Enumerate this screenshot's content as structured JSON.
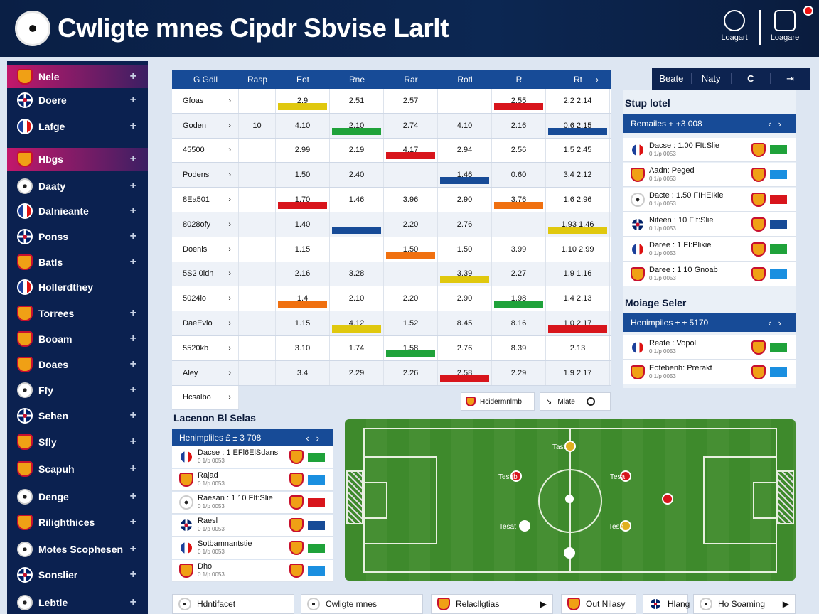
{
  "header": {
    "title": "Cwligte mnes Cipdr Sbvise Larlt",
    "brand1": "Loagart",
    "brand2": "Loagare"
  },
  "sidebar": [
    {
      "label": "Nele",
      "icon": "shield-icon"
    },
    {
      "label": "Doere",
      "icon": "uk-flag-icon"
    },
    {
      "label": "Lafge",
      "icon": "globe-icon"
    },
    {
      "label": "Hbgs",
      "icon": "shield-icon"
    },
    {
      "label": "Daaty",
      "icon": "boot-icon"
    },
    {
      "label": "Dalnieante",
      "icon": "france-flag-icon"
    },
    {
      "label": "Ponss",
      "icon": "uk-flag-icon"
    },
    {
      "label": "Batls",
      "icon": "shield-icon"
    },
    {
      "label": "Hollerdthey",
      "icon": "france-flag-icon"
    },
    {
      "label": "Torrees",
      "icon": "player-icon"
    },
    {
      "label": "Booam",
      "icon": "shield-icon"
    },
    {
      "label": "Doaes",
      "icon": "player-icon"
    },
    {
      "label": "Ffy",
      "icon": "leaf-icon"
    },
    {
      "label": "Sehen",
      "icon": "uk-flag-icon"
    },
    {
      "label": "Sfly",
      "icon": "shield-icon"
    },
    {
      "label": "Scapuh",
      "icon": "crest-icon"
    },
    {
      "label": "Denge",
      "icon": "boot-icon"
    },
    {
      "label": "Rilighthices",
      "icon": "shield-icon"
    },
    {
      "label": "Motes Scophesen",
      "icon": "ball-icon"
    },
    {
      "label": "Sonslier",
      "icon": "uk-flag-icon"
    },
    {
      "label": "Lebtle",
      "icon": "ball-icon"
    }
  ],
  "table": {
    "headers": [
      "G Gdll",
      "Rasp",
      "Eot",
      "Rne",
      "Rar",
      "Rotl",
      "R",
      "Rt"
    ],
    "rows": [
      {
        "name": "Gfoas",
        "cells": [
          "",
          "2.9",
          "2.51",
          "2.57",
          "",
          "2.55",
          "2.2  2.14"
        ]
      },
      {
        "name": "Goden",
        "cells": [
          "10",
          "4.10",
          "2.10",
          "2.74",
          "4.10",
          "2.16",
          "0.6  2.15"
        ]
      },
      {
        "name": "45500",
        "cells": [
          "",
          "2.99",
          "2.19",
          "4.17",
          "2.94",
          "2.56",
          "1.5  2.45"
        ]
      },
      {
        "name": "Podens",
        "cells": [
          "",
          "1.50",
          "2.40",
          "",
          "1.46",
          "0.60",
          "3.4  2.12"
        ]
      },
      {
        "name": "8Ea501",
        "cells": [
          "",
          "1.70",
          "1.46",
          "3.96",
          "2.90",
          "3.76",
          "1.6  2.96"
        ]
      },
      {
        "name": "8028ofy",
        "cells": [
          "",
          "1.40",
          "",
          "2.20",
          "2.76",
          "",
          "1.93  1.46"
        ]
      },
      {
        "name": "Doenls",
        "cells": [
          "",
          "1.15",
          "",
          "1.50",
          "1.50",
          "3.99",
          "1.10  2.99"
        ]
      },
      {
        "name": "5S2 0ldn",
        "cells": [
          "",
          "2.16",
          "3.28",
          "",
          "3.39",
          "2.27",
          "1.9  1.16"
        ]
      },
      {
        "name": "5024lo",
        "cells": [
          "",
          "1.4",
          "2.10",
          "2.20",
          "2.90",
          "1.98",
          "1.4  2.13"
        ]
      },
      {
        "name": "DaeEvlo",
        "cells": [
          "",
          "1.15",
          "4.12",
          "1.52",
          "8.45",
          "8.16",
          "1.0  2.17"
        ]
      },
      {
        "name": "5520kb",
        "cells": [
          "",
          "3.10",
          "1.74",
          "1.58",
          "2.76",
          "8.39",
          "2.13"
        ]
      },
      {
        "name": "Aley",
        "cells": [
          "",
          "3.4",
          "2.29",
          "2.26",
          "2.58",
          "2.29",
          "1.9  2.17"
        ]
      },
      {
        "name": "Hcsalbo",
        "cells": [
          "",
          "",
          "",
          "",
          "",
          "",
          ""
        ]
      }
    ],
    "btn1": "Hcidermnlmb",
    "btn2": "Mlate"
  },
  "right": {
    "tabs": [
      "Beate",
      "Naty",
      "C",
      ""
    ],
    "panel1": {
      "title": "Stup lotel",
      "bar": "Remailes + +3 008",
      "rows": [
        {
          "t": "Dacse : 1.00 FIt:Slie",
          "s": "0 1/p 0053"
        },
        {
          "t": "Aadn: Peged",
          "s": "0 1/p 0053"
        },
        {
          "t": "Dacte : 1.50 FIHEIkie",
          "s": "0 1/p 0053"
        },
        {
          "t": "Niteen : 10 FIt:Slie",
          "s": "0 1/p 0053"
        },
        {
          "t": "Daree : 1 FI:Plikie",
          "s": "0 1/p 0053"
        },
        {
          "t": "Daree : 1 10 Gnoab",
          "s": "0 1/p 0053"
        }
      ]
    },
    "panel2": {
      "title": "Moiage Seler",
      "bar": "Henimpiles ± ± 5170",
      "rows": [
        {
          "t": "Reate : Vopol",
          "s": "0 1/p 0053"
        },
        {
          "t": "Eotebenh: Prerakt",
          "s": "0 1/p 0053"
        }
      ]
    }
  },
  "left": {
    "title": "Lacenon Bl Selas",
    "bar": "Henimpliles £ ± 3 708",
    "rows": [
      {
        "t": "Dacse : 1 EFl6ElSdans",
        "s": "0 1/p 0053"
      },
      {
        "t": "Rajad",
        "s": "0 1/p 0053"
      },
      {
        "t": "Raesan : 1 10 FIt:Slie",
        "s": "0 1/p 0053"
      },
      {
        "t": "Raesl",
        "s": "0 1/p 0053"
      },
      {
        "t": "Sotbamnantstie",
        "s": "0 1/p 0053"
      },
      {
        "t": "Dho",
        "s": "0 1/p 0053"
      }
    ]
  },
  "pitch": {
    "players": [
      "Tast",
      "Tesab",
      "Tesa",
      "Tesat",
      "Tesb",
      "Tesab",
      "Tesa"
    ]
  },
  "bottom": [
    "Hdntifacet",
    "Cwligte mnes",
    "Relacllgtias",
    "Out Nilasy",
    "Hlang",
    "Ho Soaming"
  ],
  "colors": {
    "navy": "#0b2150",
    "blue": "#174b97",
    "red": "#d8151c",
    "yellow": "#e0c80e",
    "green": "#1fa23a"
  }
}
